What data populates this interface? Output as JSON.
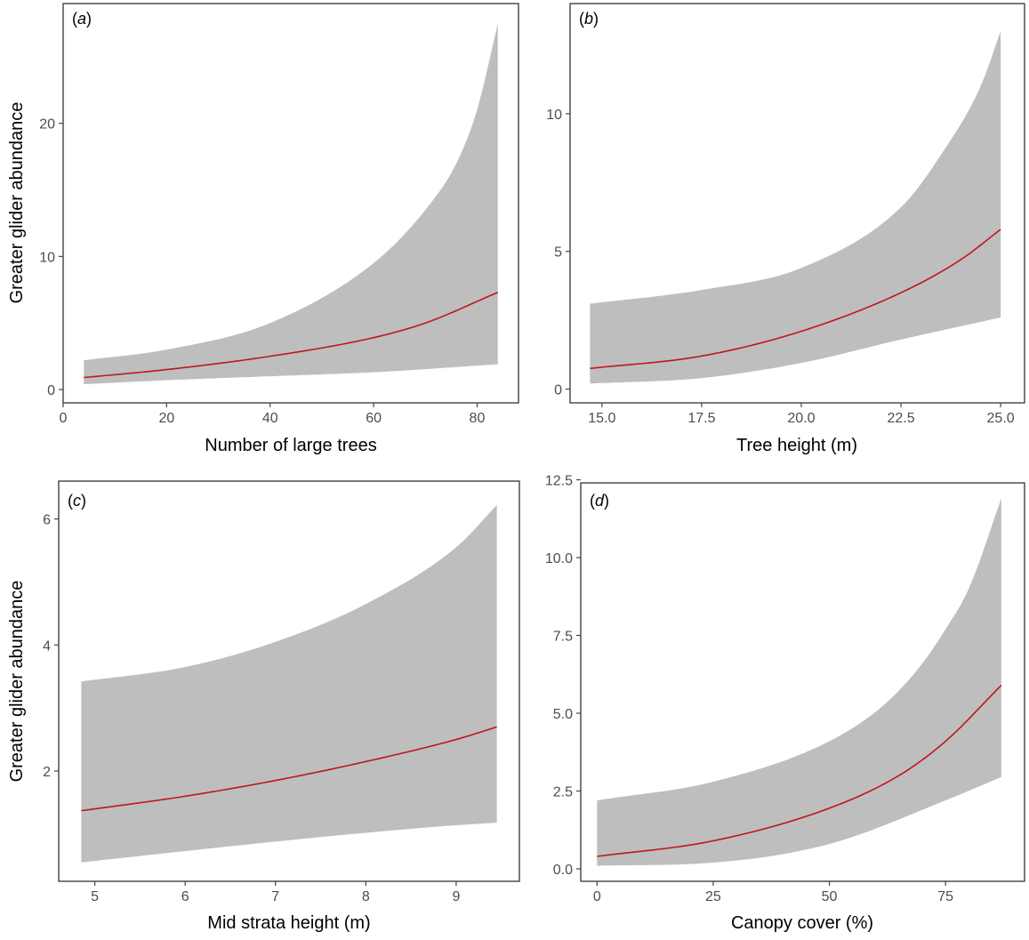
{
  "figure": {
    "y_axis_title": "Greater glider abundance"
  },
  "chart_data": [
    {
      "type": "line",
      "panel": "a",
      "panel_label": {
        "open": "(",
        "letter": "a",
        "close": ")"
      },
      "xlabel": "Number of large trees",
      "ylabel": "Greater glider abundance",
      "xlim": [
        0,
        88
      ],
      "ylim": [
        -1,
        29
      ],
      "xticks": [
        0,
        20,
        40,
        60,
        80
      ],
      "yticks": [
        0,
        10,
        20
      ],
      "xtick_labels": [
        "0",
        "20",
        "40",
        "60",
        "80"
      ],
      "ytick_labels": [
        "0",
        "10",
        "20"
      ],
      "series": [
        {
          "name": "fit",
          "x": [
            4,
            20,
            40,
            60,
            70,
            84
          ],
          "y": [
            0.9,
            1.5,
            2.5,
            3.9,
            5.0,
            7.3
          ]
        },
        {
          "name": "upper_ci",
          "x": [
            4,
            20,
            40,
            60,
            70,
            76,
            80,
            84
          ],
          "y": [
            2.2,
            3.0,
            5.0,
            9.5,
            13.5,
            17.0,
            21.0,
            27.5
          ]
        },
        {
          "name": "lower_ci",
          "x": [
            4,
            20,
            40,
            60,
            84
          ],
          "y": [
            0.4,
            0.7,
            1.0,
            1.3,
            1.9
          ]
        }
      ]
    },
    {
      "type": "line",
      "panel": "b",
      "panel_label": {
        "open": "(",
        "letter": "b",
        "close": ")"
      },
      "xlabel": "Tree height (m)",
      "ylabel": "",
      "xlim": [
        14.2,
        25.6
      ],
      "ylim": [
        -0.5,
        14.0
      ],
      "xticks": [
        15.0,
        17.5,
        20.0,
        22.5,
        25.0
      ],
      "yticks": [
        0,
        5,
        10
      ],
      "xtick_labels": [
        "15.0",
        "17.5",
        "20.0",
        "22.5",
        "25.0"
      ],
      "ytick_labels": [
        "0",
        "5",
        "10"
      ],
      "series": [
        {
          "name": "fit",
          "x": [
            14.7,
            17.5,
            20.0,
            22.5,
            24.0,
            25.0
          ],
          "y": [
            0.75,
            1.2,
            2.1,
            3.5,
            4.7,
            5.8
          ]
        },
        {
          "name": "upper_ci",
          "x": [
            14.7,
            17.5,
            20.0,
            22.5,
            23.5,
            24.5,
            25.0
          ],
          "y": [
            3.1,
            3.6,
            4.4,
            6.6,
            8.5,
            11.0,
            13.0
          ]
        },
        {
          "name": "lower_ci",
          "x": [
            14.7,
            17.5,
            20.0,
            22.5,
            25.0
          ],
          "y": [
            0.2,
            0.4,
            0.95,
            1.8,
            2.6
          ]
        }
      ]
    },
    {
      "type": "line",
      "panel": "c",
      "panel_label": {
        "open": "(",
        "letter": "c",
        "close": ")"
      },
      "xlabel": "Mid strata height (m)",
      "ylabel": "Greater glider abundance",
      "xlim": [
        4.6,
        9.7
      ],
      "ylim": [
        0.25,
        6.6
      ],
      "xticks": [
        5,
        6,
        7,
        8,
        9
      ],
      "yticks": [
        2,
        4,
        6
      ],
      "xtick_labels": [
        "5",
        "6",
        "7",
        "8",
        "9"
      ],
      "ytick_labels": [
        "2",
        "4",
        "6"
      ],
      "series": [
        {
          "name": "fit",
          "x": [
            4.85,
            6,
            7,
            8,
            9,
            9.45
          ],
          "y": [
            1.37,
            1.6,
            1.85,
            2.15,
            2.5,
            2.7
          ]
        },
        {
          "name": "upper_ci",
          "x": [
            4.85,
            6,
            7,
            8,
            9,
            9.45
          ],
          "y": [
            3.42,
            3.65,
            4.05,
            4.65,
            5.55,
            6.22
          ]
        },
        {
          "name": "lower_ci",
          "x": [
            4.85,
            6,
            7,
            8,
            9,
            9.45
          ],
          "y": [
            0.55,
            0.73,
            0.88,
            1.02,
            1.14,
            1.18
          ]
        }
      ]
    },
    {
      "type": "line",
      "panel": "d",
      "panel_label": {
        "open": "(",
        "letter": "d",
        "close": ")"
      },
      "xlabel": "Canopy cover (%)",
      "ylabel": "",
      "xlim": [
        -3.5,
        92
      ],
      "ylim": [
        -0.4,
        12.4
      ],
      "xticks": [
        0,
        25,
        50,
        75
      ],
      "yticks": [
        0.0,
        2.5,
        5.0,
        7.5,
        10.0,
        12.5
      ],
      "xtick_labels": [
        "0",
        "25",
        "50",
        "75"
      ],
      "ytick_labels": [
        "0.0",
        "2.5",
        "5.0",
        "7.5",
        "10.0",
        "12.5"
      ],
      "series": [
        {
          "name": "fit",
          "x": [
            0,
            25,
            50,
            65,
            75,
            87
          ],
          "y": [
            0.4,
            0.9,
            1.95,
            3.0,
            4.1,
            5.9
          ]
        },
        {
          "name": "upper_ci",
          "x": [
            0,
            25,
            50,
            62,
            70,
            75,
            80,
            87
          ],
          "y": [
            2.2,
            2.8,
            4.1,
            5.3,
            6.6,
            7.7,
            9.0,
            11.9
          ]
        },
        {
          "name": "lower_ci",
          "x": [
            0,
            25,
            50,
            75,
            87
          ],
          "y": [
            0.1,
            0.2,
            0.8,
            2.2,
            2.95
          ]
        }
      ]
    }
  ]
}
